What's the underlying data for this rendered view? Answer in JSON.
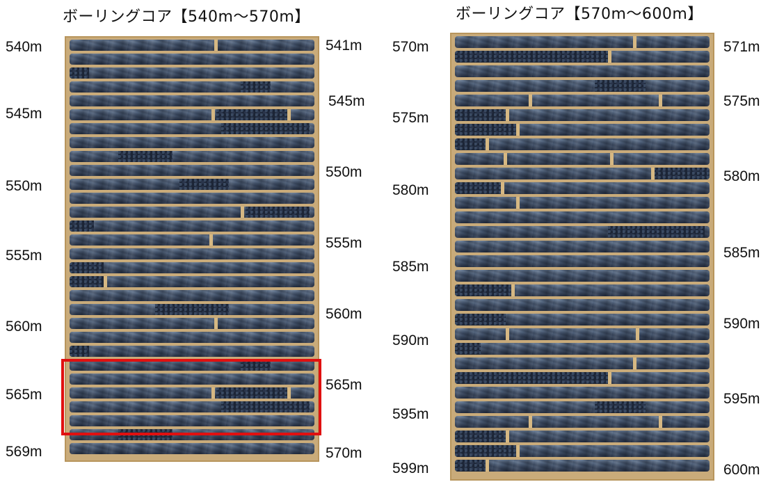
{
  "titles": {
    "left": "ボーリングコア【540m～570m】",
    "right": "ボーリングコア【570m～600m】"
  },
  "left_box": {
    "left_labels": [
      "540m",
      "545m",
      "550m",
      "555m",
      "560m",
      "565m",
      "569m"
    ],
    "right_labels": [
      "541m",
      "545m",
      "550m",
      "555m",
      "560m",
      "565m",
      "570m"
    ]
  },
  "right_box": {
    "left_labels": [
      "570m",
      "575m",
      "580m",
      "585m",
      "590m",
      "595m",
      "599m"
    ],
    "right_labels": [
      "571m",
      "575m",
      "580m",
      "585m",
      "590m",
      "595m",
      "600m"
    ]
  },
  "highlight": {
    "color": "#e01010",
    "section": "565m"
  },
  "colors": {
    "tray": "#c9ab7a",
    "core": "#4a5b74",
    "rubble": "#1c2536"
  }
}
